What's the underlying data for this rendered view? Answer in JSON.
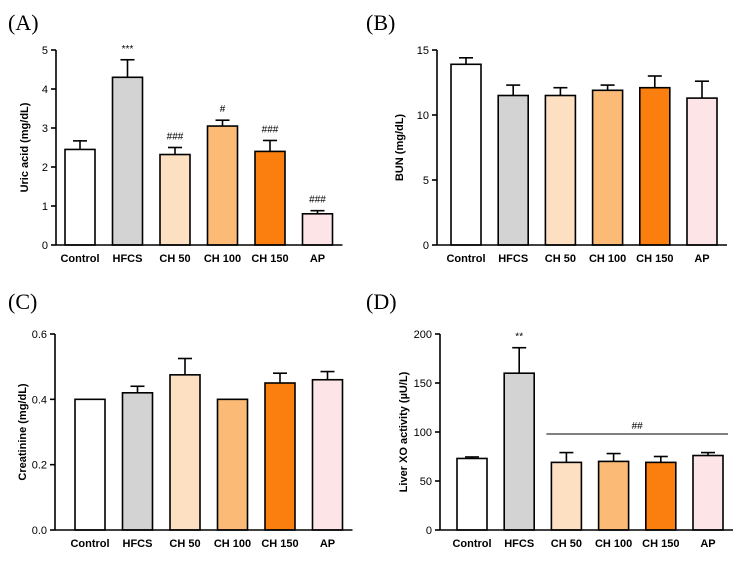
{
  "colors": {
    "Control": "#ffffff",
    "HFCS": "#d3d3d3",
    "CH 50": "#fde0c2",
    "CH 100": "#fbbb77",
    "CH 150": "#fb7f0e",
    "AP": "#fde4e6"
  },
  "chart_data": [
    {
      "panel": "(A)",
      "type": "bar",
      "categories": [
        "Control",
        "HFCS",
        "CH 50",
        "CH 100",
        "CH 150",
        "AP"
      ],
      "values": [
        2.45,
        4.3,
        2.32,
        3.05,
        2.4,
        0.8
      ],
      "errors": [
        0.22,
        0.45,
        0.18,
        0.15,
        0.28,
        0.08
      ],
      "annotations": [
        "",
        "***",
        "###",
        "#",
        "###",
        "###"
      ],
      "ylabel": "Uric acid (mg/dL)",
      "ylim": [
        0,
        5
      ],
      "yticks": [
        "0",
        "1",
        "2",
        "3",
        "4",
        "5"
      ],
      "ytick_values": [
        0,
        1,
        2,
        3,
        4,
        5
      ]
    },
    {
      "panel": "(B)",
      "type": "bar",
      "categories": [
        "Control",
        "HFCS",
        "CH 50",
        "CH 100",
        "CH 150",
        "AP"
      ],
      "values": [
        13.9,
        11.5,
        11.5,
        11.9,
        12.1,
        11.3
      ],
      "errors": [
        0.5,
        0.8,
        0.6,
        0.4,
        0.9,
        1.3
      ],
      "annotations": [
        "",
        "",
        "",
        "",
        "",
        ""
      ],
      "ylabel": "BUN (mg/dL)",
      "ylim": [
        0,
        15
      ],
      "yticks": [
        "0",
        "5",
        "10",
        "15"
      ],
      "ytick_values": [
        0,
        5,
        10,
        15
      ]
    },
    {
      "panel": "(C)",
      "type": "bar",
      "categories": [
        "Control",
        "HFCS",
        "CH 50",
        "CH 100",
        "CH 150",
        "AP"
      ],
      "values": [
        0.4,
        0.42,
        0.475,
        0.4,
        0.45,
        0.46
      ],
      "errors": [
        0.0,
        0.02,
        0.05,
        0.0,
        0.03,
        0.025
      ],
      "annotations": [
        "",
        "",
        "",
        "",
        "",
        ""
      ],
      "ylabel": "Creatinine (mg/dL)",
      "ylim": [
        0,
        0.6
      ],
      "yticks": [
        "0.0",
        "0.2",
        "0.4",
        "0.6"
      ],
      "ytick_values": [
        0,
        0.2,
        0.4,
        0.6
      ]
    },
    {
      "panel": "(D)",
      "type": "bar",
      "categories": [
        "Control",
        "HFCS",
        "CH 50",
        "CH 100",
        "CH 150",
        "AP"
      ],
      "values": [
        73,
        160,
        69,
        70,
        69,
        76
      ],
      "errors": [
        1.5,
        26,
        10,
        8,
        6,
        3
      ],
      "annotations": [
        "",
        "**",
        "",
        "",
        "",
        ""
      ],
      "group_annotation": "##",
      "ylabel": "Liver XO activity (µU/L)",
      "ylim": [
        0,
        200
      ],
      "yticks": [
        "0",
        "50",
        "100",
        "150",
        "200"
      ],
      "ytick_values": [
        0,
        50,
        100,
        150,
        200
      ]
    }
  ]
}
